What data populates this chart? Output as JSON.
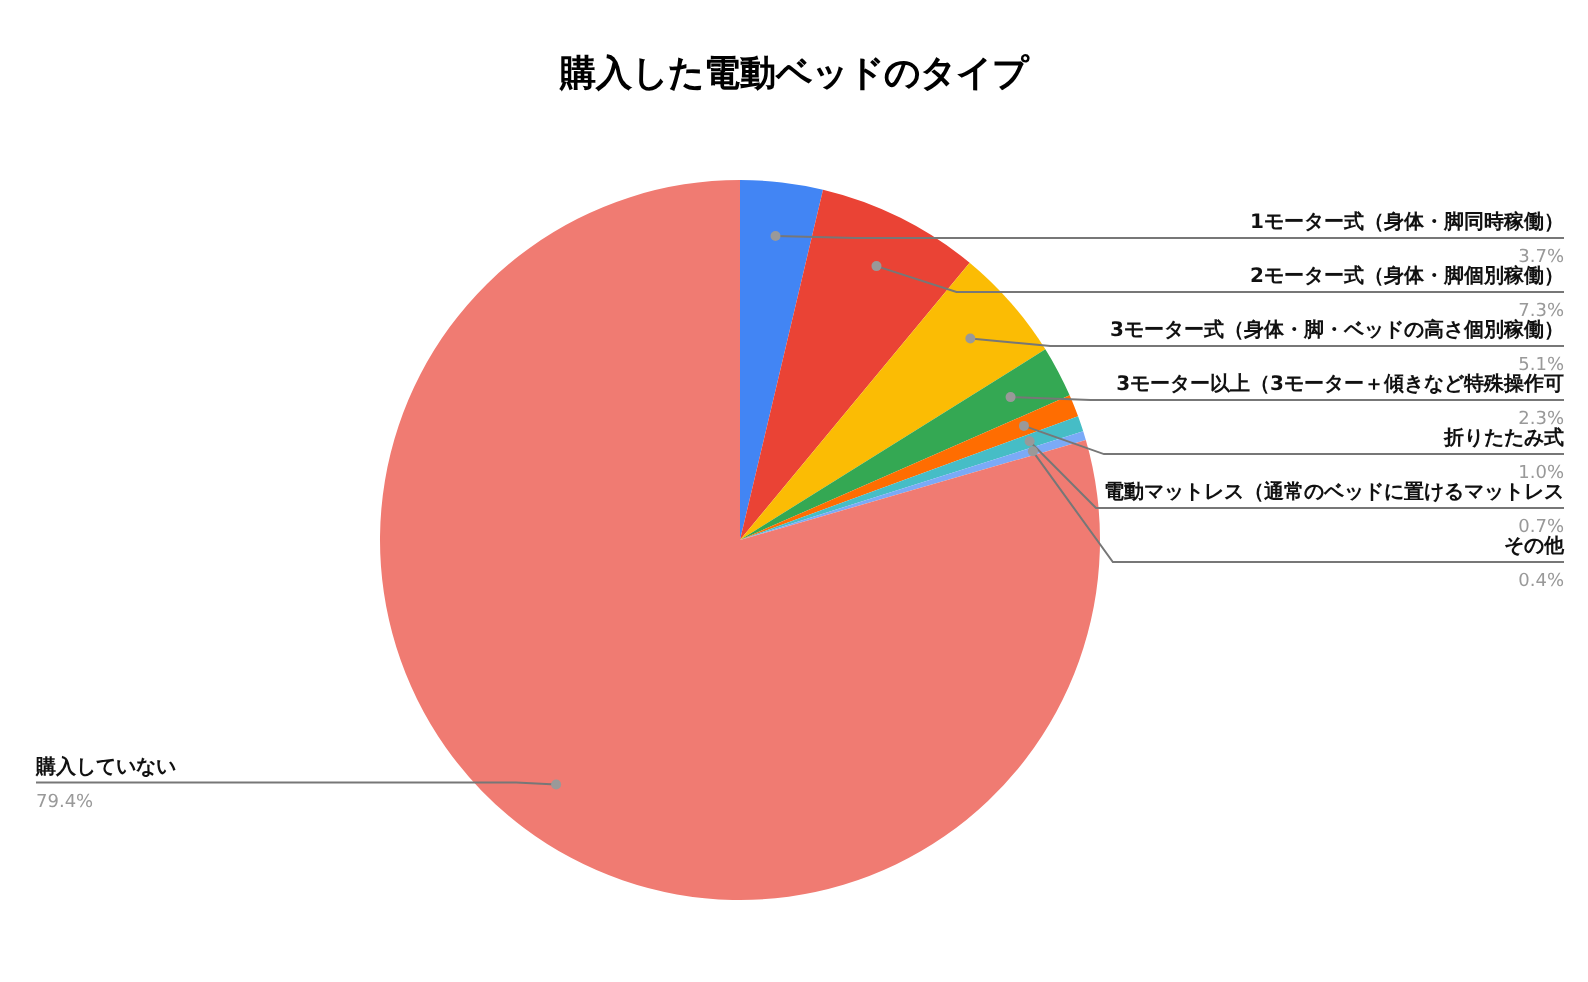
{
  "chart_data": {
    "type": "pie",
    "title": "購入した電動ベッドのタイプ",
    "categories": [
      "1モーター式（身体・脚同時稼働）",
      "2モーター式（身体・脚個別稼働）",
      "3モーター式（身体・脚・ベッドの高さ個別稼働）",
      "3モーター以上（3モーター＋傾きなど特殊操作可",
      "折りたたみ式",
      "電動マットレス（通常のベッドに置けるマットレス",
      "その他",
      "購入していない"
    ],
    "values": [
      3.7,
      7.3,
      5.1,
      2.3,
      1.0,
      0.7,
      0.4,
      79.4
    ],
    "value_labels": [
      "3.7%",
      "7.3%",
      "5.1%",
      "2.3%",
      "1.0%",
      "0.7%",
      "0.4%",
      "79.4%"
    ],
    "colors": [
      "#4285f4",
      "#ea4335",
      "#fbbc04",
      "#34a853",
      "#ff6d01",
      "#46bdc6",
      "#7baaf7",
      "#f07b72"
    ],
    "legend": false
  }
}
